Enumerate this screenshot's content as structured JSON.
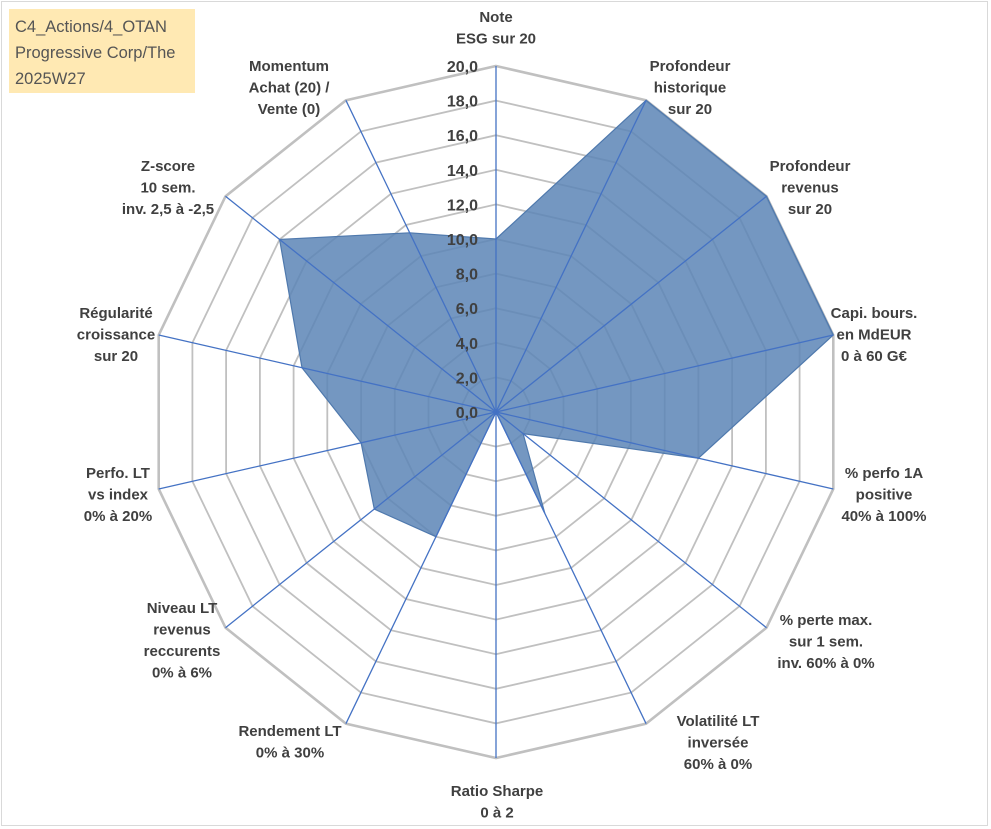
{
  "title_lines": [
    "C4_Actions/4_OTAN",
    "Progressive Corp/The",
    "2025W27"
  ],
  "chart_data": {
    "type": "radar",
    "r_min": 0,
    "r_max": 20,
    "tick_step": 2,
    "tick_labels": [
      "0,0",
      "2,0",
      "4,0",
      "6,0",
      "8,0",
      "10,0",
      "12,0",
      "14,0",
      "16,0",
      "18,0",
      "20,0"
    ],
    "axes": [
      {
        "label": [
          "Note",
          "ESG sur 20"
        ]
      },
      {
        "label": [
          "Profondeur",
          "historique",
          "sur 20"
        ]
      },
      {
        "label": [
          "Profondeur",
          "revenus",
          "sur 20"
        ]
      },
      {
        "label": [
          "Capi. bours.",
          "en MdEUR",
          "0 à 60 G€"
        ]
      },
      {
        "label": [
          "% perfo 1A",
          "positive",
          "40% à 100%"
        ]
      },
      {
        "label": [
          "% perte max.",
          "sur 1 sem.",
          "inv. 60% à 0%"
        ]
      },
      {
        "label": [
          "Volatilité LT",
          "inversée",
          "60% à 0%"
        ]
      },
      {
        "label": [
          "Ratio Sharpe",
          "0 à 2"
        ]
      },
      {
        "label": [
          "Rendement LT",
          "0% à 30%"
        ]
      },
      {
        "label": [
          "Niveau LT",
          "revenus",
          "reccurents",
          "0% à 6%"
        ]
      },
      {
        "label": [
          "Perfo. LT",
          "vs index",
          "0% à 20%"
        ]
      },
      {
        "label": [
          "Régularité",
          "croissance",
          "sur 20"
        ]
      },
      {
        "label": [
          "Z-score",
          "10 sem.",
          "inv. 2,5 à -2,5"
        ]
      },
      {
        "label": [
          "Momentum",
          "Achat (20) /",
          "Vente (0)"
        ]
      }
    ],
    "series": [
      {
        "values": [
          10.0,
          20.0,
          20.0,
          20.0,
          12.0,
          2.0,
          6.5,
          0.0,
          8.0,
          9.0,
          8.0,
          11.5,
          16.0,
          11.5
        ],
        "color": "#4f79ad"
      }
    ],
    "colors": {
      "grid": "#c0c0c0",
      "spoke": "#4472c4",
      "fill": "#5c85b6",
      "title_bg": "#ffe9b3"
    }
  }
}
